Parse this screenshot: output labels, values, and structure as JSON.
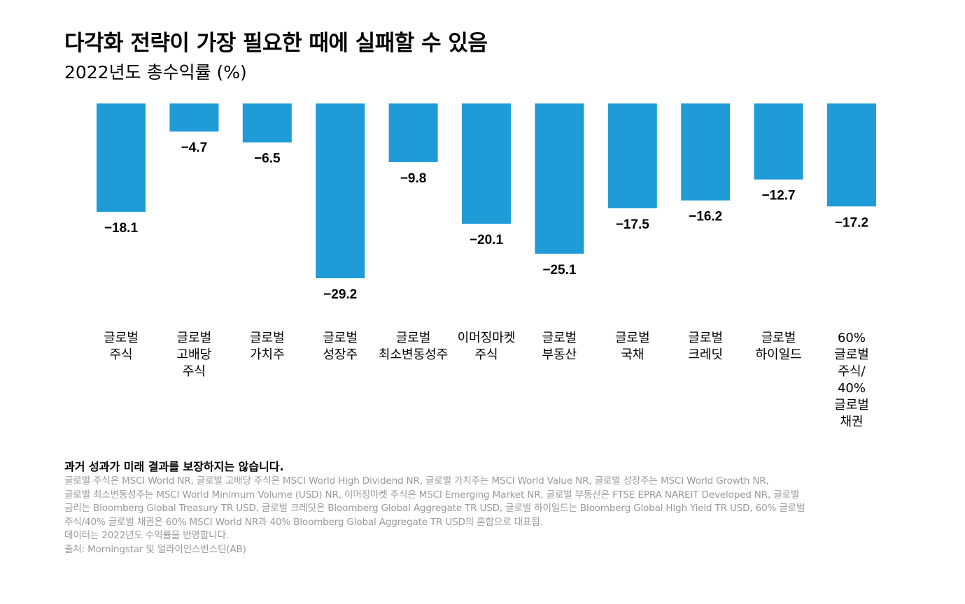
{
  "chart_data": {
    "type": "bar",
    "title": "다각화 전략이 가장 필요한 때에 실패할 수 있음",
    "subtitle": "2022년도 총수익률 (%)",
    "categories": [
      [
        "글로벌",
        "주식"
      ],
      [
        "글로벌",
        "고배당",
        "주식"
      ],
      [
        "글로벌",
        "가치주"
      ],
      [
        "글로벌",
        "성장주"
      ],
      [
        "글로벌",
        "최소변동성주"
      ],
      [
        "이머징마켓",
        "주식"
      ],
      [
        "글로벌",
        "부동산"
      ],
      [
        "글로벌",
        "국채"
      ],
      [
        "글로벌",
        "크레딧"
      ],
      [
        "글로벌",
        "하이일드"
      ],
      [
        "60%",
        "글로벌",
        "주식/",
        "40%",
        "글로벌",
        "채권"
      ]
    ],
    "values": [
      -18.1,
      -4.7,
      -6.5,
      -29.2,
      -9.8,
      -20.1,
      -25.1,
      -17.5,
      -16.2,
      -12.7,
      -17.2
    ],
    "data_labels": [
      "−18.1",
      "−4.7",
      "−6.5",
      "−29.2",
      "−9.8",
      "−20.1",
      "−25.1",
      "−17.5",
      "−16.2",
      "−12.7",
      "−17.2"
    ],
    "ylim": [
      -29.2,
      0
    ],
    "grid": false,
    "bar_color": "#1f9bd7"
  },
  "notes": {
    "disclaimer": "과거 성과가 미래 결과를 보장하지는 않습니다.",
    "lines": [
      "글로벌 주식은 MSCI World NR, 글로벌 고배당 주식은 MSCI World High Dividend NR, 글로벌 가치주는 MSCI World Value NR, 글로벌 성장주는 MSCI World Growth NR,",
      "글로벌 최소변동성주는 MSCI World Minimum Volume (USD) NR, 이머징마켓 주식은 MSCI Emerging Market NR, 글로벌 부동산은 FTSE EPRA NAREIT Developed NR, 글로벌",
      "금리는 Bloomberg Global Treasury TR USD, 글로벌 크레딧은 Bloomberg Global Aggregate TR USD, 글로벌 하이일드는 Bloomberg Global High Yield TR USD, 60% 글로벌",
      "주식/40% 글로벌 채권은 60% MSCI World NR과 40% Bloomberg Global Aggregate TR USD의 혼합으로 대표됨.",
      "데이터는 2022년도 수익률을 반영합니다.",
      "출처: Morningstar 및 얼라이언스번스틴(AB)"
    ]
  }
}
